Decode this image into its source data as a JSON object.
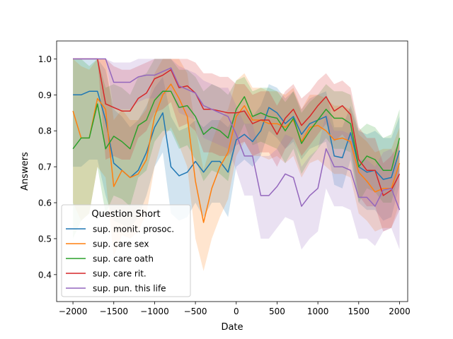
{
  "chart_data": {
    "type": "line",
    "title": "",
    "xlabel": "Date",
    "ylabel": "Answers",
    "xlim": [
      -2200,
      2100
    ],
    "ylim": [
      0.325,
      1.05
    ],
    "xticks": [
      -2000,
      -1500,
      -1000,
      -500,
      0,
      500,
      1000,
      1500,
      2000
    ],
    "xtick_labels": [
      "−2000",
      "−1500",
      "−1000",
      "−500",
      "0",
      "500",
      "1000",
      "1500",
      "2000"
    ],
    "yticks": [
      0.4,
      0.5,
      0.6,
      0.7,
      0.8,
      0.9,
      1.0
    ],
    "ytick_labels": [
      "0.4",
      "0.5",
      "0.6",
      "0.7",
      "0.8",
      "0.9",
      "1.0"
    ],
    "grid": false,
    "legend": {
      "title": "Question Short",
      "placement": "lower-left"
    },
    "x": [
      -2000,
      -1900,
      -1800,
      -1700,
      -1600,
      -1500,
      -1400,
      -1300,
      -1200,
      -1100,
      -1000,
      -900,
      -800,
      -700,
      -600,
      -500,
      -400,
      -300,
      -200,
      -100,
      0,
      100,
      200,
      300,
      400,
      500,
      600,
      700,
      800,
      900,
      1000,
      1100,
      1200,
      1300,
      1400,
      1500,
      1600,
      1700,
      1800,
      1900,
      2000
    ],
    "series": [
      {
        "name": "sup. monit. prosoc.",
        "color": "#1f77b4",
        "values": [
          0.9,
          0.9,
          0.91,
          0.91,
          0.83,
          0.71,
          0.69,
          0.67,
          0.69,
          0.74,
          0.81,
          0.85,
          0.7,
          0.675,
          0.685,
          0.715,
          0.685,
          0.715,
          0.715,
          0.685,
          0.775,
          0.79,
          0.77,
          0.8,
          0.865,
          0.85,
          0.82,
          0.84,
          0.79,
          0.82,
          0.83,
          0.84,
          0.73,
          0.725,
          0.795,
          0.7,
          0.685,
          0.69,
          0.665,
          0.67,
          0.745
        ],
        "lower": [
          0.7,
          0.7,
          0.72,
          0.72,
          0.62,
          0.55,
          0.54,
          0.53,
          0.56,
          0.62,
          0.7,
          0.74,
          0.57,
          0.55,
          0.56,
          0.6,
          0.56,
          0.6,
          0.6,
          0.56,
          0.7,
          0.72,
          0.7,
          0.73,
          0.8,
          0.78,
          0.75,
          0.77,
          0.72,
          0.75,
          0.76,
          0.77,
          0.65,
          0.64,
          0.72,
          0.6,
          0.58,
          0.58,
          0.55,
          0.56,
          0.65
        ],
        "upper": [
          1.0,
          1.0,
          1.0,
          1.0,
          0.97,
          0.86,
          0.84,
          0.81,
          0.83,
          0.87,
          0.92,
          0.95,
          0.84,
          0.8,
          0.81,
          0.83,
          0.81,
          0.83,
          0.83,
          0.81,
          0.85,
          0.86,
          0.84,
          0.87,
          0.93,
          0.92,
          0.89,
          0.91,
          0.86,
          0.89,
          0.9,
          0.91,
          0.81,
          0.81,
          0.87,
          0.8,
          0.79,
          0.8,
          0.78,
          0.78,
          0.84
        ]
      },
      {
        "name": "sup. care sex",
        "color": "#ff7f0e",
        "values": [
          0.855,
          0.78,
          0.78,
          0.89,
          0.86,
          0.645,
          0.69,
          0.67,
          0.68,
          0.72,
          0.84,
          0.9,
          0.93,
          0.89,
          0.84,
          0.66,
          0.545,
          0.64,
          0.7,
          0.74,
          0.84,
          0.87,
          0.83,
          0.83,
          0.82,
          0.82,
          0.81,
          0.83,
          0.77,
          0.81,
          0.815,
          0.8,
          0.775,
          0.78,
          0.77,
          0.685,
          0.66,
          0.63,
          0.64,
          0.64,
          0.71
        ],
        "lower": [
          0.6,
          0.55,
          0.57,
          0.7,
          0.67,
          0.45,
          0.51,
          0.5,
          0.52,
          0.57,
          0.7,
          0.78,
          0.81,
          0.76,
          0.7,
          0.5,
          0.41,
          0.5,
          0.56,
          0.61,
          0.73,
          0.77,
          0.73,
          0.73,
          0.72,
          0.73,
          0.71,
          0.73,
          0.67,
          0.71,
          0.72,
          0.7,
          0.68,
          0.68,
          0.67,
          0.57,
          0.55,
          0.52,
          0.53,
          0.53,
          0.6
        ],
        "upper": [
          1.0,
          0.98,
          0.97,
          1.0,
          1.0,
          0.83,
          0.86,
          0.83,
          0.83,
          0.86,
          0.96,
          1.0,
          1.0,
          1.0,
          0.96,
          0.81,
          0.69,
          0.77,
          0.83,
          0.86,
          0.94,
          0.96,
          0.92,
          0.92,
          0.91,
          0.91,
          0.9,
          0.92,
          0.86,
          0.9,
          0.9,
          0.89,
          0.87,
          0.87,
          0.86,
          0.79,
          0.77,
          0.74,
          0.75,
          0.75,
          0.81
        ]
      },
      {
        "name": "sup. care oath",
        "color": "#2ca02c",
        "values": [
          0.75,
          0.78,
          0.78,
          0.875,
          0.75,
          0.785,
          0.77,
          0.75,
          0.815,
          0.83,
          0.885,
          0.91,
          0.91,
          0.865,
          0.87,
          0.84,
          0.79,
          0.81,
          0.8,
          0.78,
          0.86,
          0.895,
          0.84,
          0.85,
          0.84,
          0.835,
          0.8,
          0.835,
          0.765,
          0.8,
          0.83,
          0.86,
          0.835,
          0.835,
          0.82,
          0.7,
          0.73,
          0.72,
          0.69,
          0.69,
          0.78
        ],
        "lower": [
          0.5,
          0.55,
          0.57,
          0.7,
          0.57,
          0.62,
          0.61,
          0.59,
          0.67,
          0.69,
          0.77,
          0.8,
          0.8,
          0.75,
          0.76,
          0.72,
          0.66,
          0.69,
          0.68,
          0.66,
          0.77,
          0.82,
          0.76,
          0.77,
          0.76,
          0.75,
          0.71,
          0.75,
          0.68,
          0.72,
          0.75,
          0.78,
          0.75,
          0.75,
          0.74,
          0.6,
          0.64,
          0.63,
          0.6,
          0.6,
          0.69
        ],
        "upper": [
          1.0,
          1.0,
          0.98,
          1.0,
          0.92,
          0.93,
          0.92,
          0.9,
          0.95,
          0.96,
          1.0,
          1.0,
          1.0,
          0.97,
          0.97,
          0.95,
          0.91,
          0.93,
          0.92,
          0.9,
          0.94,
          0.95,
          0.91,
          0.92,
          0.92,
          0.91,
          0.88,
          0.91,
          0.85,
          0.88,
          0.9,
          0.93,
          0.91,
          0.91,
          0.9,
          0.8,
          0.82,
          0.81,
          0.78,
          0.79,
          0.86
        ]
      },
      {
        "name": "sup. care rit.",
        "color": "#d62728",
        "values": [
          1.0,
          1.0,
          1.0,
          1.0,
          0.875,
          0.865,
          0.855,
          0.855,
          0.89,
          0.905,
          0.945,
          0.955,
          0.97,
          0.92,
          0.925,
          0.905,
          0.86,
          0.86,
          0.855,
          0.85,
          0.85,
          0.855,
          0.82,
          0.83,
          0.83,
          0.79,
          0.835,
          0.86,
          0.815,
          0.84,
          0.87,
          0.895,
          0.855,
          0.87,
          0.845,
          0.72,
          0.69,
          0.69,
          0.62,
          0.635,
          0.68
        ],
        "lower": [
          1.0,
          1.0,
          1.0,
          1.0,
          0.72,
          0.73,
          0.72,
          0.72,
          0.78,
          0.8,
          0.85,
          0.86,
          0.88,
          0.81,
          0.82,
          0.8,
          0.74,
          0.74,
          0.73,
          0.73,
          0.76,
          0.77,
          0.73,
          0.74,
          0.74,
          0.7,
          0.75,
          0.78,
          0.73,
          0.76,
          0.79,
          0.82,
          0.77,
          0.79,
          0.76,
          0.62,
          0.59,
          0.59,
          0.52,
          0.53,
          0.58
        ],
        "upper": [
          1.0,
          1.0,
          1.0,
          1.0,
          1.0,
          0.98,
          0.97,
          0.97,
          0.98,
          0.99,
          1.0,
          1.0,
          1.0,
          1.0,
          1.0,
          0.99,
          0.96,
          0.96,
          0.95,
          0.95,
          0.93,
          0.93,
          0.9,
          0.91,
          0.91,
          0.87,
          0.91,
          0.93,
          0.89,
          0.91,
          0.94,
          0.96,
          0.93,
          0.94,
          0.92,
          0.81,
          0.78,
          0.78,
          0.71,
          0.73,
          0.77
        ]
      },
      {
        "name": "sup. pun. this life",
        "color": "#9467bd",
        "values": [
          1.0,
          1.0,
          1.0,
          1.0,
          1.0,
          0.935,
          0.935,
          0.935,
          0.95,
          0.955,
          0.955,
          0.965,
          0.975,
          0.925,
          0.915,
          0.905,
          0.87,
          0.86,
          0.85,
          0.84,
          0.79,
          0.73,
          0.73,
          0.62,
          0.62,
          0.645,
          0.68,
          0.67,
          0.59,
          0.62,
          0.64,
          0.75,
          0.7,
          0.7,
          0.69,
          0.615,
          0.615,
          0.59,
          0.635,
          0.64,
          0.58
        ],
        "lower": [
          1.0,
          1.0,
          1.0,
          1.0,
          1.0,
          0.86,
          0.86,
          0.86,
          0.88,
          0.89,
          0.89,
          0.9,
          0.91,
          0.85,
          0.84,
          0.83,
          0.78,
          0.77,
          0.76,
          0.75,
          0.69,
          0.62,
          0.62,
          0.5,
          0.5,
          0.53,
          0.56,
          0.55,
          0.47,
          0.5,
          0.52,
          0.64,
          0.59,
          0.59,
          0.58,
          0.5,
          0.5,
          0.48,
          0.52,
          0.53,
          0.47
        ],
        "upper": [
          1.0,
          1.0,
          1.0,
          1.0,
          1.0,
          0.99,
          0.99,
          0.99,
          1.0,
          1.0,
          1.0,
          1.0,
          1.0,
          0.98,
          0.97,
          0.96,
          0.94,
          0.93,
          0.92,
          0.92,
          0.87,
          0.82,
          0.82,
          0.73,
          0.73,
          0.75,
          0.79,
          0.78,
          0.7,
          0.73,
          0.75,
          0.85,
          0.8,
          0.8,
          0.79,
          0.72,
          0.72,
          0.7,
          0.74,
          0.75,
          0.69
        ]
      }
    ]
  }
}
